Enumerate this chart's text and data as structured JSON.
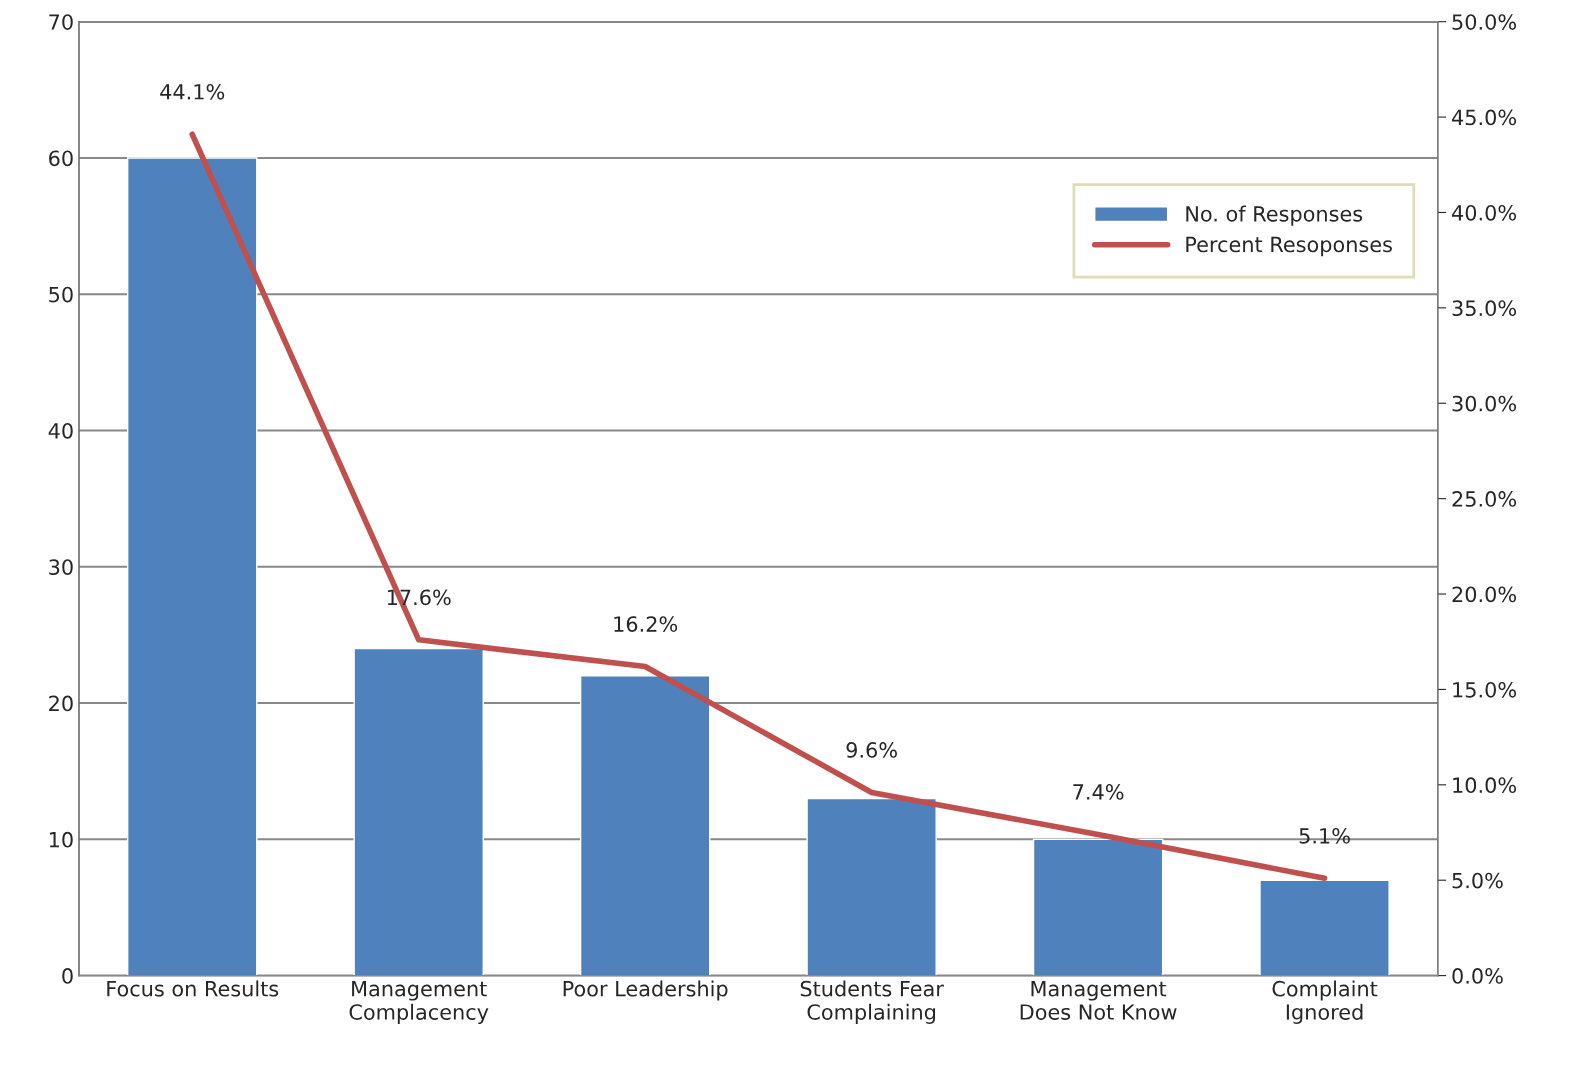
{
  "chart_data": {
    "type": "bar",
    "categories": [
      "Focus on Results",
      "Management\nComplacency",
      "Poor Leadership",
      "Students Fear\nComplaining",
      "Management\nDoes Not Know",
      "Complaint\nIgnored"
    ],
    "series": [
      {
        "name": "No. of Responses",
        "color": "#4f81bd",
        "values": [
          60,
          24,
          22,
          13,
          10,
          7
        ]
      },
      {
        "name": "Percent Resoponses",
        "type": "line",
        "axis": "y2",
        "color": "#c0504d",
        "values": [
          44.1,
          17.6,
          16.2,
          9.6,
          7.4,
          5.1
        ],
        "value_labels": [
          "44.1%",
          "17.6%",
          "16.2%",
          "9.6%",
          "7.4%",
          "5.1%"
        ]
      }
    ],
    "ylim": [
      0,
      70
    ],
    "yticks": [
      0,
      10,
      20,
      30,
      40,
      50,
      60,
      70
    ],
    "y2lim": [
      0,
      50
    ],
    "y2ticks": [
      {
        "value": 0,
        "label": "0.0%"
      },
      {
        "value": 5,
        "label": "5.0%"
      },
      {
        "value": 10,
        "label": "10.0%"
      },
      {
        "value": 15,
        "label": "15.0%"
      },
      {
        "value": 20,
        "label": "20.0%"
      },
      {
        "value": 25,
        "label": "25.0%"
      },
      {
        "value": 30,
        "label": "30.0%"
      },
      {
        "value": 35,
        "label": "35.0%"
      },
      {
        "value": 40,
        "label": "40.0%"
      },
      {
        "value": 45,
        "label": "45.0%"
      },
      {
        "value": 50,
        "label": "50.0%"
      }
    ],
    "grid": "y",
    "legend": "top right",
    "marker": "none",
    "line_style": "solid"
  }
}
